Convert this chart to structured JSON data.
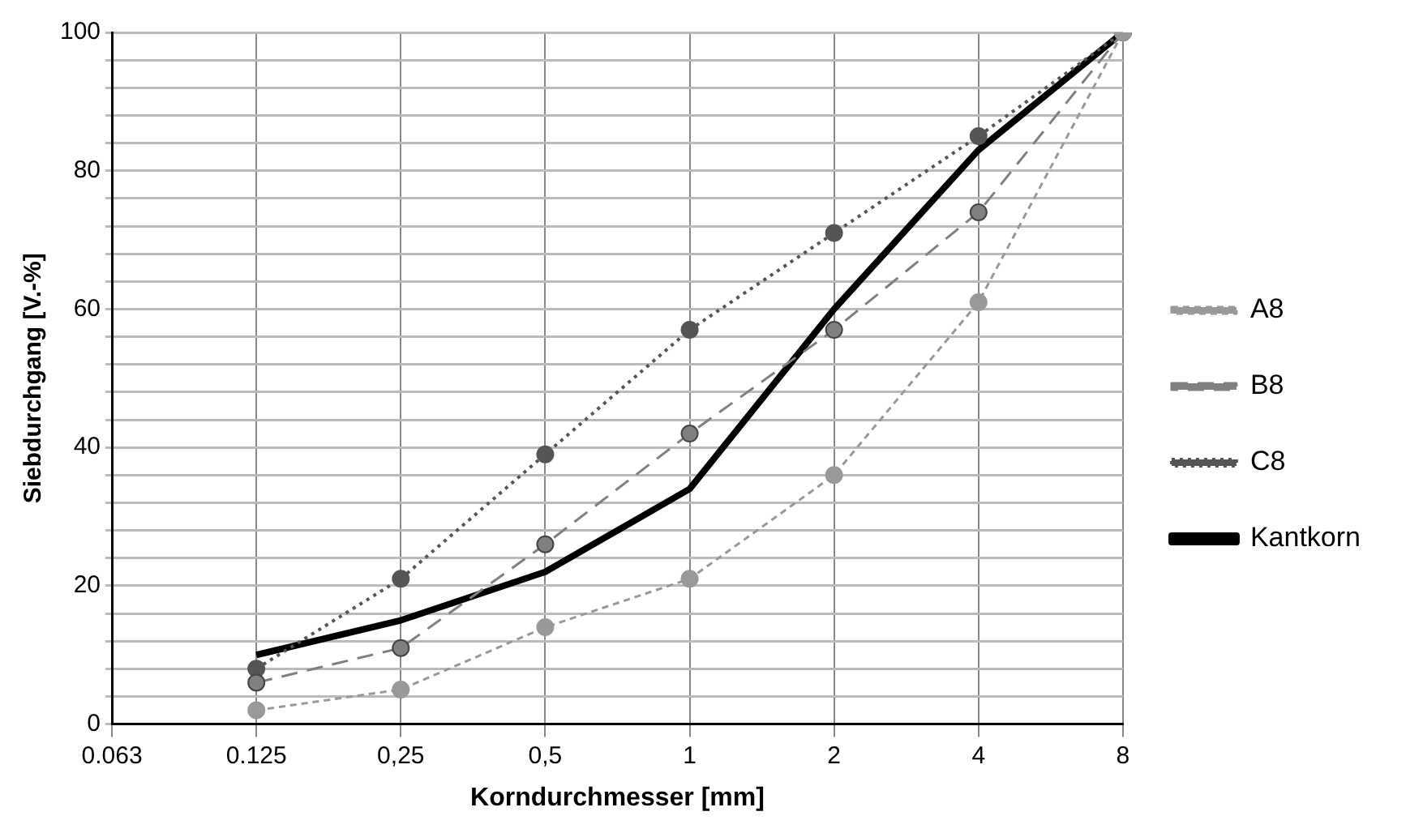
{
  "chart_data": {
    "type": "line",
    "xlabel": "Korndurchmesser [mm]",
    "ylabel": "Siebdurchgang [V.-%]",
    "categories": [
      "0.063",
      "0.125",
      "0,25",
      "0,5",
      "1",
      "2",
      "4",
      "8"
    ],
    "ylim": [
      0,
      100
    ],
    "yticks": [
      0,
      {
        "value": 4,
        "label": null
      },
      {
        "value": 8,
        "label": null
      },
      {
        "value": 12,
        "label": null
      },
      {
        "value": 16,
        "label": null
      },
      20,
      {
        "value": 24,
        "label": null
      },
      {
        "value": 28,
        "label": null
      },
      {
        "value": 32,
        "label": null
      },
      {
        "value": 36,
        "label": null
      },
      40,
      {
        "value": 44,
        "label": null
      },
      {
        "value": 48,
        "label": null
      },
      {
        "value": 52,
        "label": null
      },
      {
        "value": 56,
        "label": null
      },
      60,
      {
        "value": 64,
        "label": null
      },
      {
        "value": 68,
        "label": null
      },
      {
        "value": 72,
        "label": null
      },
      {
        "value": 76,
        "label": null
      },
      80,
      {
        "value": 84,
        "label": null
      },
      {
        "value": 88,
        "label": null
      },
      {
        "value": 92,
        "label": null
      },
      {
        "value": 96,
        "label": null
      },
      100
    ],
    "grid": true,
    "legend": "right",
    "series": [
      {
        "name": "A8",
        "color": "#999999",
        "line_style": "dashed",
        "marker": "circle",
        "values": [
          null,
          2,
          5,
          14,
          21,
          36,
          61,
          100
        ]
      },
      {
        "name": "B8",
        "color": "#808080",
        "line_style": "dashed",
        "marker": "circle",
        "values": [
          null,
          6,
          11,
          26,
          42,
          57,
          74,
          100
        ]
      },
      {
        "name": "C8",
        "color": "#555555",
        "line_style": "dotted",
        "marker": "circle",
        "values": [
          null,
          8,
          21,
          39,
          57,
          71,
          85,
          100
        ]
      },
      {
        "name": "Kantkorn",
        "color": "#000000",
        "line_style": "solid",
        "marker": "none",
        "values": [
          null,
          10,
          15,
          22,
          34,
          60,
          83,
          100
        ]
      }
    ]
  }
}
